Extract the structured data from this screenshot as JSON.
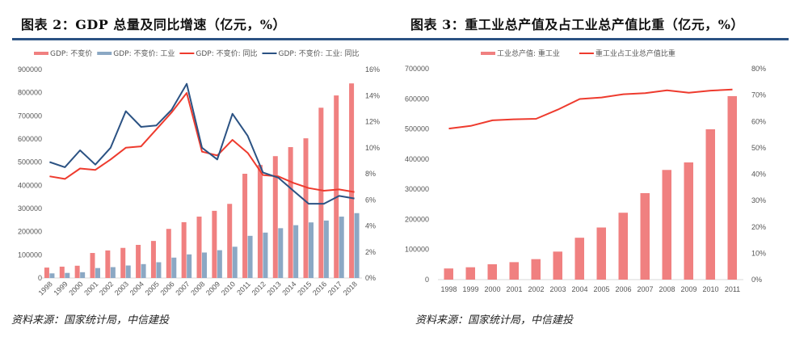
{
  "panels": [
    {
      "title": "图表 2：GDP 总量及同比增速（亿元，%）",
      "source": "资料来源：国家统计局，中信建投"
    },
    {
      "title": "图表 3：重工业总产值及占工业总产值比重（亿元，%）",
      "source": "资料来源：国家统计局，中信建投"
    }
  ],
  "colors": {
    "rule": "#2b5283",
    "bar_red": "#f08080",
    "bar_blue": "#8ba8c4",
    "line_red": "#ee3b2e",
    "line_blue": "#2b5283"
  },
  "chart_data": [
    {
      "type": "bar",
      "title": "图表 2：GDP 总量及同比增速（亿元，%）",
      "categories": [
        "1998",
        "1999",
        "2000",
        "2001",
        "2002",
        "2003",
        "2004",
        "2005",
        "2006",
        "2007",
        "2008",
        "2009",
        "2010",
        "2011",
        "2012",
        "2013",
        "2014",
        "2015",
        "2016",
        "2017",
        "2018"
      ],
      "series": [
        {
          "name": "GDP: 不变价",
          "kind": "bar",
          "axis": "left",
          "color": "#f08080",
          "values": [
            45000,
            49000,
            53000,
            108000,
            119000,
            130000,
            143000,
            160000,
            212000,
            241000,
            265000,
            290000,
            320000,
            450000,
            488000,
            526000,
            565000,
            603000,
            735000,
            788000,
            840000
          ]
        },
        {
          "name": "GDP: 不变价: 工业",
          "kind": "bar",
          "axis": "left",
          "color": "#8ba8c4",
          "values": [
            20000,
            22000,
            25000,
            43000,
            47000,
            54000,
            60000,
            68000,
            88000,
            102000,
            110000,
            120000,
            135000,
            182000,
            196000,
            215000,
            228000,
            240000,
            248000,
            265000,
            280000
          ]
        },
        {
          "name": "GDP: 不变价: 同比",
          "kind": "line",
          "axis": "right",
          "color": "#ee3b2e",
          "values": [
            7.8,
            7.6,
            8.4,
            8.3,
            9.1,
            10.0,
            10.1,
            11.4,
            12.7,
            14.2,
            9.7,
            9.4,
            10.6,
            9.6,
            7.9,
            7.8,
            7.3,
            6.9,
            6.7,
            6.8,
            6.6
          ]
        },
        {
          "name": "GDP: 不变价: 工业: 同比",
          "kind": "line",
          "axis": "right",
          "color": "#2b5283",
          "values": [
            8.9,
            8.5,
            9.8,
            8.7,
            10.0,
            12.8,
            11.6,
            11.7,
            12.9,
            14.9,
            10.0,
            9.1,
            12.6,
            10.9,
            8.1,
            7.7,
            6.7,
            5.7,
            5.7,
            6.3,
            6.1
          ]
        }
      ],
      "y_left": {
        "min": 0,
        "max": 900000,
        "step": 100000,
        "ticks": [
          "0",
          "100000",
          "200000",
          "300000",
          "400000",
          "500000",
          "600000",
          "700000",
          "800000",
          "900000"
        ]
      },
      "y_right": {
        "min": 0,
        "max": 16,
        "step": 2,
        "ticks": [
          "0%",
          "2%",
          "4%",
          "6%",
          "8%",
          "10%",
          "12%",
          "14%",
          "16%"
        ]
      },
      "xlabel": "",
      "ylabel": "",
      "x_label_rotation": "diagonal",
      "legend": "top",
      "grid": false
    },
    {
      "type": "bar",
      "title": "图表 3：重工业总产值及占工业总产值比重（亿元，%）",
      "categories": [
        "1998",
        "1999",
        "2000",
        "2001",
        "2002",
        "2003",
        "2004",
        "2005",
        "2006",
        "2007",
        "2008",
        "2009",
        "2010",
        "2011"
      ],
      "series": [
        {
          "name": "工业总产值: 重工业",
          "kind": "bar",
          "axis": "left",
          "color": "#f08080",
          "values": [
            37000,
            41000,
            51000,
            58000,
            68000,
            93000,
            139000,
            173000,
            222000,
            287000,
            364000,
            389000,
            499000,
            609000
          ]
        },
        {
          "name": "重工业占工业总产值比重",
          "kind": "line",
          "axis": "right",
          "color": "#ee3b2e",
          "values": [
            57.3,
            58.3,
            60.4,
            60.8,
            61.0,
            64.5,
            68.5,
            69.1,
            70.3,
            70.7,
            71.8,
            70.9,
            71.7,
            72.1
          ]
        }
      ],
      "y_left": {
        "min": 0,
        "max": 700000,
        "step": 100000,
        "ticks": [
          "0",
          "100000",
          "200000",
          "300000",
          "400000",
          "500000",
          "600000",
          "700000"
        ]
      },
      "y_right": {
        "min": 0,
        "max": 80,
        "step": 10,
        "ticks": [
          "0%",
          "10%",
          "20%",
          "30%",
          "40%",
          "50%",
          "60%",
          "70%",
          "80%"
        ]
      },
      "xlabel": "",
      "ylabel": "",
      "x_label_rotation": "horizontal",
      "legend": "top",
      "grid": false
    }
  ]
}
